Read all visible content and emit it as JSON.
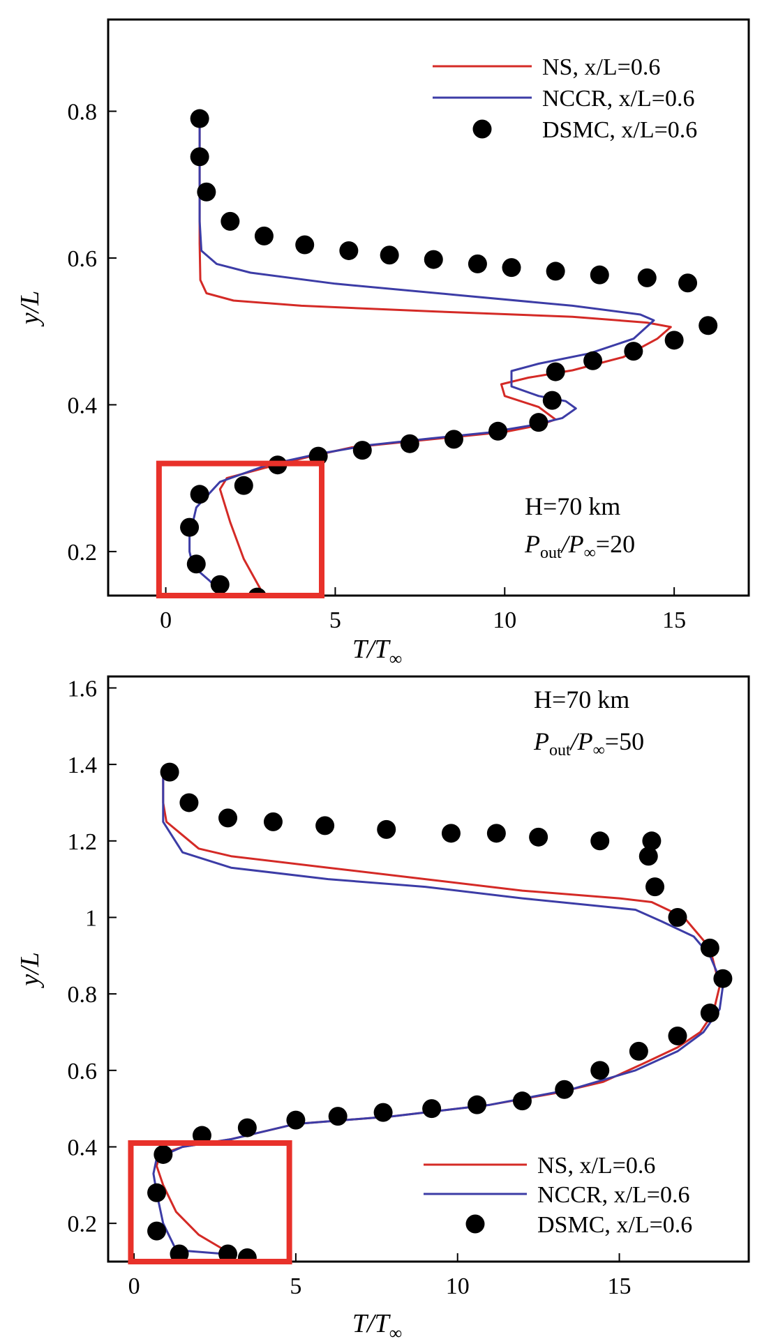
{
  "chart_data": [
    {
      "type": "line",
      "title": "",
      "xlabel": {
        "base": "T/T",
        "sub": "∞"
      },
      "ylabel": "y/L",
      "xlim": [
        -1.7,
        17.2
      ],
      "ylim": [
        0.14,
        0.925
      ],
      "xticks": [
        0,
        5,
        10,
        15
      ],
      "yticks": [
        0.2,
        0.4,
        0.6,
        0.8
      ],
      "grid": false,
      "legend_placement": "top-right",
      "legend": [
        {
          "kind": "line",
          "label": "NS, x/L=0.6",
          "color": "#d42a26"
        },
        {
          "kind": "line",
          "label": "NCCR, x/L=0.6",
          "color": "#3c3ca6"
        },
        {
          "kind": "marker",
          "label": "DSMC, x/L=0.6",
          "color": "#000000"
        }
      ],
      "annotation": {
        "line1": "H=70 km",
        "line2": {
          "p": "P",
          "out": "out",
          "slash": "/P",
          "inf": "∞",
          "value": "=20"
        }
      },
      "highlight_box": {
        "x": [
          -0.2,
          4.6
        ],
        "y": [
          0.14,
          0.32
        ]
      },
      "series": [
        {
          "name": "NS, x/L=0.6",
          "kind": "line",
          "color": "#d42a26",
          "x": [
            2.9,
            2.3,
            1.9,
            1.6,
            1.8,
            3.0,
            4.3,
            5.5,
            7.2,
            8.7,
            10.0,
            11.0,
            11.5,
            11.0,
            10.0,
            9.9,
            10.7,
            12.0,
            13.5,
            14.5,
            14.9,
            14.2,
            12.0,
            8.0,
            4.0,
            2.0,
            1.2,
            1.02,
            1.0,
            1.0,
            1.0
          ],
          "y": [
            0.14,
            0.19,
            0.24,
            0.285,
            0.3,
            0.315,
            0.33,
            0.342,
            0.35,
            0.357,
            0.363,
            0.372,
            0.38,
            0.397,
            0.412,
            0.428,
            0.437,
            0.447,
            0.465,
            0.49,
            0.506,
            0.512,
            0.52,
            0.527,
            0.535,
            0.542,
            0.552,
            0.57,
            0.62,
            0.7,
            0.8
          ]
        },
        {
          "name": "NCCR, x/L=0.6",
          "kind": "line",
          "color": "#3c3ca6",
          "x": [
            1.7,
            1.3,
            0.8,
            0.7,
            0.7,
            0.9,
            1.6,
            3.0,
            4.5,
            6.0,
            7.8,
            9.5,
            10.8,
            11.7,
            12.1,
            11.8,
            11.0,
            10.2,
            10.2,
            11.0,
            12.5,
            13.8,
            14.4,
            14.0,
            12.0,
            8.5,
            5.0,
            2.5,
            1.5,
            1.05,
            1.0,
            1.0,
            1.0
          ],
          "y": [
            0.14,
            0.16,
            0.18,
            0.2,
            0.22,
            0.26,
            0.295,
            0.318,
            0.333,
            0.345,
            0.354,
            0.362,
            0.372,
            0.382,
            0.395,
            0.405,
            0.412,
            0.425,
            0.446,
            0.456,
            0.47,
            0.49,
            0.515,
            0.523,
            0.535,
            0.55,
            0.565,
            0.58,
            0.592,
            0.61,
            0.65,
            0.72,
            0.8
          ]
        },
        {
          "name": "DSMC, x/L=0.6",
          "kind": "marker",
          "color": "#000000",
          "x": [
            2.7,
            1.6,
            0.9,
            0.7,
            1.0,
            2.3,
            3.3,
            4.5,
            5.8,
            7.2,
            8.5,
            9.8,
            11.0,
            11.4,
            11.5,
            12.6,
            13.8,
            15.0,
            16.0,
            15.4,
            14.2,
            12.8,
            11.5,
            10.2,
            9.2,
            7.9,
            6.6,
            5.4,
            4.1,
            2.9,
            1.9,
            1.2,
            1.0,
            1.0
          ],
          "y": [
            0.138,
            0.155,
            0.183,
            0.233,
            0.278,
            0.29,
            0.318,
            0.33,
            0.338,
            0.347,
            0.353,
            0.364,
            0.376,
            0.406,
            0.445,
            0.46,
            0.473,
            0.488,
            0.508,
            0.566,
            0.573,
            0.577,
            0.582,
            0.587,
            0.592,
            0.598,
            0.604,
            0.61,
            0.618,
            0.63,
            0.65,
            0.69,
            0.738,
            0.79
          ]
        }
      ]
    },
    {
      "type": "line",
      "title": "",
      "xlabel": {
        "base": "T/T",
        "sub": "∞"
      },
      "ylabel": "y/L",
      "xlim": [
        -0.8,
        19.0
      ],
      "ylim": [
        0.1,
        1.63
      ],
      "xticks": [
        0,
        5,
        10,
        15
      ],
      "yticks": [
        0.2,
        0.4,
        0.6,
        0.8,
        1.0,
        1.2,
        1.4,
        1.6
      ],
      "grid": false,
      "legend_placement": "bottom-right",
      "legend": [
        {
          "kind": "line",
          "label": "NS, x/L=0.6",
          "color": "#d42a26"
        },
        {
          "kind": "line",
          "label": "NCCR, x/L=0.6",
          "color": "#3c3ca6"
        },
        {
          "kind": "marker",
          "label": "DSMC, x/L=0.6",
          "color": "#000000"
        }
      ],
      "annotation": {
        "line1": "H=70 km",
        "line2": {
          "p": "P",
          "out": "out",
          "slash": "/P",
          "inf": "∞",
          "value": "=50"
        }
      },
      "highlight_box": {
        "x": [
          -0.1,
          4.8
        ],
        "y": [
          0.1,
          0.41
        ]
      },
      "series": [
        {
          "name": "NS, x/L=0.6",
          "kind": "line",
          "color": "#d42a26",
          "x": [
            3.0,
            2.0,
            1.3,
            0.9,
            0.7,
            0.8,
            1.5,
            3.0,
            5.0,
            8.0,
            11.0,
            13.0,
            14.5,
            15.8,
            16.8,
            17.5,
            17.9,
            18.1,
            17.8,
            17.0,
            16.0,
            15.0,
            12.0,
            9.0,
            6.0,
            3.0,
            2.0,
            1.0,
            0.9,
            0.9,
            0.9
          ],
          "y": [
            0.12,
            0.17,
            0.23,
            0.3,
            0.35,
            0.38,
            0.4,
            0.42,
            0.46,
            0.48,
            0.51,
            0.54,
            0.57,
            0.62,
            0.66,
            0.7,
            0.75,
            0.82,
            0.92,
            1.0,
            1.04,
            1.05,
            1.07,
            1.1,
            1.13,
            1.16,
            1.18,
            1.25,
            1.3,
            1.35,
            1.38
          ]
        },
        {
          "name": "NCCR, x/L=0.6",
          "kind": "line",
          "color": "#3c3ca6",
          "x": [
            2.8,
            1.3,
            0.9,
            0.7,
            0.6,
            0.7,
            1.5,
            3.0,
            5.0,
            8.0,
            11.0,
            13.5,
            15.5,
            16.8,
            17.6,
            18.1,
            18.2,
            17.8,
            17.3,
            16.3,
            15.5,
            12.0,
            9.0,
            6.0,
            3.0,
            1.5,
            0.9,
            0.9,
            0.9
          ],
          "y": [
            0.12,
            0.13,
            0.2,
            0.28,
            0.33,
            0.37,
            0.4,
            0.42,
            0.46,
            0.48,
            0.51,
            0.55,
            0.6,
            0.65,
            0.7,
            0.76,
            0.82,
            0.9,
            0.95,
            0.99,
            1.02,
            1.05,
            1.08,
            1.1,
            1.13,
            1.17,
            1.25,
            1.32,
            1.38
          ]
        },
        {
          "name": "DSMC, x/L=0.6",
          "kind": "marker",
          "color": "#000000",
          "x": [
            3.5,
            2.9,
            1.4,
            0.7,
            0.7,
            0.9,
            2.1,
            3.5,
            5.0,
            6.3,
            7.7,
            9.2,
            10.6,
            12.0,
            13.3,
            14.4,
            15.6,
            16.8,
            17.8,
            18.2,
            17.8,
            16.8,
            16.1,
            15.9,
            16.0,
            14.4,
            12.5,
            11.2,
            9.8,
            7.8,
            5.9,
            4.3,
            2.9,
            1.7,
            1.1
          ],
          "y": [
            0.11,
            0.12,
            0.12,
            0.18,
            0.28,
            0.38,
            0.43,
            0.45,
            0.47,
            0.48,
            0.49,
            0.5,
            0.51,
            0.52,
            0.55,
            0.6,
            0.65,
            0.69,
            0.75,
            0.84,
            0.92,
            1.0,
            1.08,
            1.16,
            1.2,
            1.2,
            1.21,
            1.22,
            1.22,
            1.23,
            1.24,
            1.25,
            1.26,
            1.3,
            1.38
          ]
        }
      ]
    }
  ]
}
